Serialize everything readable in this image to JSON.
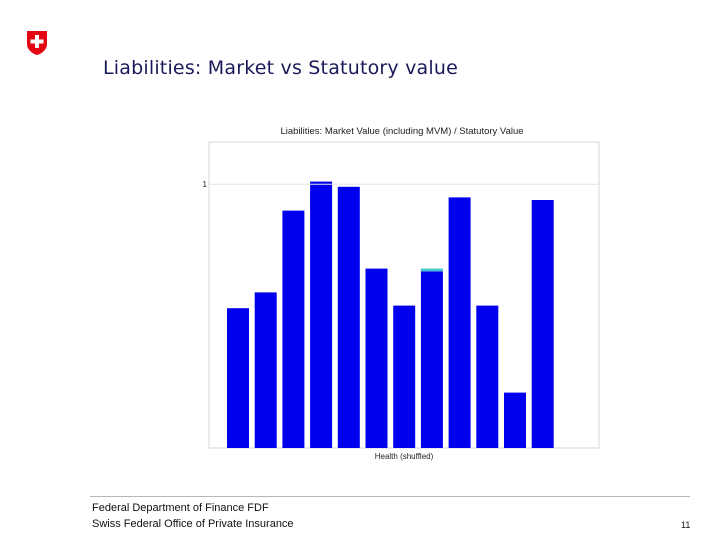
{
  "slide": {
    "title": "Liabilities: Market vs Statutory value",
    "logo_icon": "swiss-cross-icon",
    "footer_line1": "Federal Department of Finance FDF",
    "footer_line2": "Swiss Federal Office of Private Insurance",
    "page_number": "11"
  },
  "chart_data": {
    "type": "bar",
    "title": "Liabilities: Market Value (including MVM) / Statutory Value",
    "xlabel": "Health (shuffled)",
    "ylabel": "",
    "ylim": [
      0,
      1.16
    ],
    "yticks": [
      1
    ],
    "grid": false,
    "values": [
      0.53,
      0.59,
      0.9,
      1.01,
      0.99,
      0.68,
      0.54,
      0.67,
      0.95,
      0.54,
      0.21,
      0.94
    ],
    "highlight": {
      "index": 7,
      "extra": 0.01,
      "color": "#3ec8c8"
    },
    "bar_color": "#0000ee"
  }
}
